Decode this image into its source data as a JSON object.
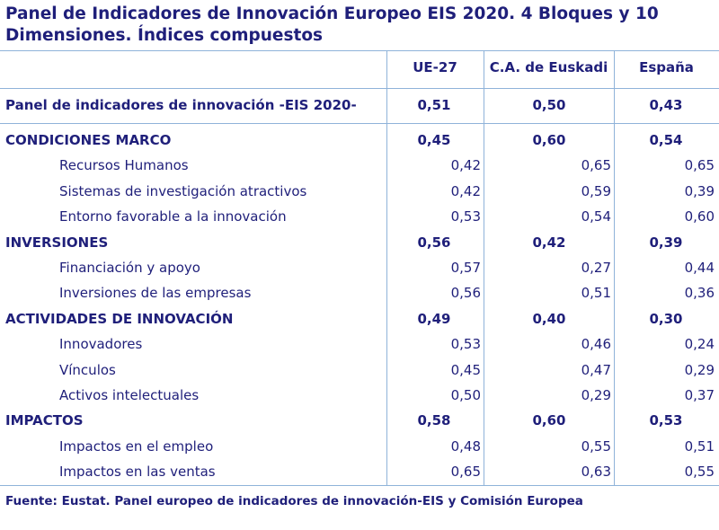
{
  "title": "Panel de Indicadores de Innovación Europeo EIS 2020. 4 Bloques y 10 Dimensiones. Índices compuestos",
  "columns": [
    "UE-27",
    "C.A. de Euskadi",
    "España"
  ],
  "summary": {
    "label": "Panel de indicadores de innovación -EIS 2020-",
    "values": [
      "0,51",
      "0,50",
      "0,43"
    ]
  },
  "groups": [
    {
      "label": "CONDICIONES MARCO",
      "values": [
        "0,45",
        "0,60",
        "0,54"
      ],
      "items": [
        {
          "label": "Recursos Humanos",
          "values": [
            "0,42",
            "0,65",
            "0,65"
          ]
        },
        {
          "label": "Sistemas de investigación atractivos",
          "values": [
            "0,42",
            "0,59",
            "0,39"
          ]
        },
        {
          "label": "Entorno favorable a la innovación",
          "values": [
            "0,53",
            "0,54",
            "0,60"
          ]
        }
      ]
    },
    {
      "label": "INVERSIONES",
      "values": [
        "0,56",
        "0,42",
        "0,39"
      ],
      "items": [
        {
          "label": "Financiación y apoyo",
          "values": [
            "0,57",
            "0,27",
            "0,44"
          ]
        },
        {
          "label": "Inversiones de las empresas",
          "values": [
            "0,56",
            "0,51",
            "0,36"
          ]
        }
      ]
    },
    {
      "label": "ACTIVIDADES DE INNOVACIÓN",
      "values": [
        "0,49",
        "0,40",
        "0,30"
      ],
      "items": [
        {
          "label": "Innovadores",
          "values": [
            "0,53",
            "0,46",
            "0,24"
          ]
        },
        {
          "label": "Vínculos",
          "values": [
            "0,45",
            "0,47",
            "0,29"
          ]
        },
        {
          "label": "Activos intelectuales",
          "values": [
            "0,50",
            "0,29",
            "0,37"
          ]
        }
      ]
    },
    {
      "label": "IMPACTOS",
      "values": [
        "0,58",
        "0,60",
        "0,53"
      ],
      "items": [
        {
          "label": "Impactos en el empleo",
          "values": [
            "0,48",
            "0,55",
            "0,51"
          ]
        },
        {
          "label": "Impactos en las ventas",
          "values": [
            "0,65",
            "0,63",
            "0,55"
          ]
        }
      ]
    }
  ],
  "source": "Fuente: Eustat. Panel europeo de indicadores de innovación-EIS y Comisión Europea"
}
